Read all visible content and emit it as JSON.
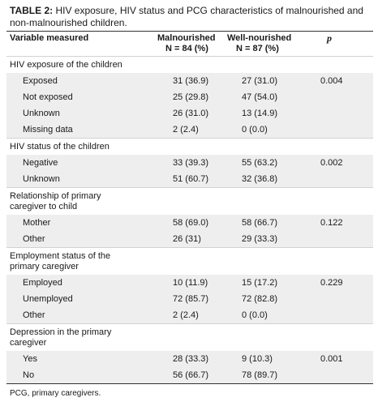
{
  "caption": {
    "label": "TABLE 2:",
    "text": " HIV exposure, HIV status and PCG characteristics of malnourished and non-malnourished children."
  },
  "header": {
    "variable": "Variable measured",
    "malnourished": "Malnourished",
    "malnourished_n": "N = 84 (%)",
    "well": "Well-nourished",
    "well_n": "N = 87 (%)",
    "p": "p"
  },
  "sections": [
    {
      "title": [
        "HIV exposure of the children"
      ],
      "rows": [
        {
          "label": "Exposed",
          "mal": "31 (36.9)",
          "well": "27 (31.0)",
          "p": "0.004"
        },
        {
          "label": "Not exposed",
          "mal": "25 (29.8)",
          "well": "47 (54.0)",
          "p": ""
        },
        {
          "label": "Unknown",
          "mal": "26 (31.0)",
          "well": "13 (14.9)",
          "p": ""
        },
        {
          "label": "Missing data",
          "mal": "2 (2.4)",
          "well": "0 (0.0)",
          "p": ""
        }
      ]
    },
    {
      "title": [
        "HIV status of the children"
      ],
      "rows": [
        {
          "label": "Negative",
          "mal": "33 (39.3)",
          "well": "55 (63.2)",
          "p": "0.002"
        },
        {
          "label": "Unknown",
          "mal": "51 (60.7)",
          "well": "32 (36.8)",
          "p": ""
        }
      ]
    },
    {
      "title": [
        "Relationship of primary",
        "caregiver to child"
      ],
      "rows": [
        {
          "label": "Mother",
          "mal": "58 (69.0)",
          "well": "58 (66.7)",
          "p": "0.122"
        },
        {
          "label": "Other",
          "mal": "26 (31)",
          "well": "29 (33.3)",
          "p": ""
        }
      ]
    },
    {
      "title": [
        "Employment status of the",
        "primary caregiver"
      ],
      "rows": [
        {
          "label": "Employed",
          "mal": "10 (11.9)",
          "well": "15 (17.2)",
          "p": "0.229"
        },
        {
          "label": "Unemployed",
          "mal": "72 (85.7)",
          "well": "72 (82.8)",
          "p": ""
        },
        {
          "label": "Other",
          "mal": "2 (2.4)",
          "well": "0 (0.0)",
          "p": ""
        }
      ]
    },
    {
      "title": [
        "Depression in the primary",
        "caregiver"
      ],
      "rows": [
        {
          "label": "Yes",
          "mal": "28 (33.3)",
          "well": "9 (10.3)",
          "p": "0.001"
        },
        {
          "label": "No",
          "mal": "56 (66.7)",
          "well": "78 (89.7)",
          "p": ""
        }
      ]
    }
  ],
  "footnote": "PCG, primary caregivers."
}
